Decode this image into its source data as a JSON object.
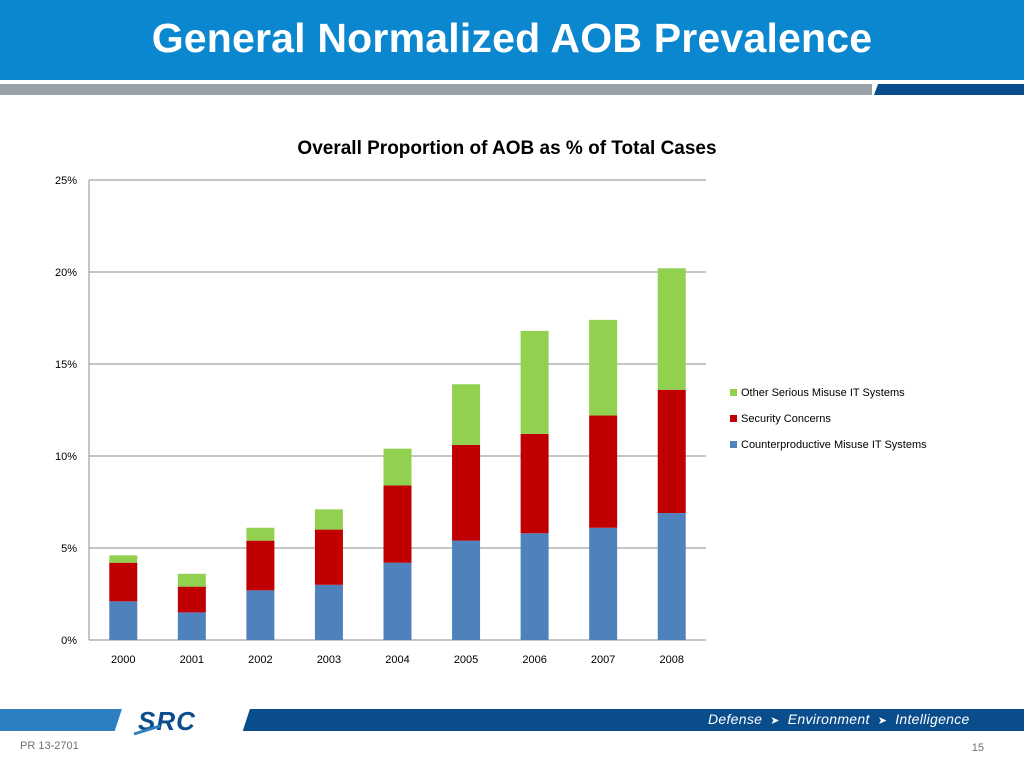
{
  "slide": {
    "title": "General Normalized AOB Prevalence",
    "footer_code": "PR 13-2701",
    "page_number": "15",
    "logo_text": "SRC",
    "tagline": [
      "Defense",
      "Environment",
      "Intelligence"
    ]
  },
  "colors": {
    "header_blue": "#0a87cf",
    "dark_blue": "#0a4d8c",
    "gray_bar": "#9aa1a8",
    "series_blue": "#4f81bd",
    "series_red": "#c00000",
    "series_green": "#92d050"
  },
  "chart_data": {
    "type": "bar",
    "stacked": true,
    "title": "Overall Proportion of AOB as % of Total Cases",
    "xlabel": "",
    "ylabel": "",
    "categories": [
      "2000",
      "2001",
      "2002",
      "2003",
      "2004",
      "2005",
      "2006",
      "2007",
      "2008"
    ],
    "ylim": [
      0,
      25
    ],
    "y_ticks": [
      "0%",
      "5%",
      "10%",
      "15%",
      "20%",
      "25%"
    ],
    "y_tick_values": [
      0,
      5,
      10,
      15,
      20,
      25
    ],
    "grid": true,
    "legend_position": "right",
    "series": [
      {
        "name": "Counterproductive Misuse IT Systems",
        "color": "#4f81bd",
        "values": [
          2.1,
          1.5,
          2.7,
          3.0,
          4.2,
          5.4,
          5.8,
          6.1,
          6.9
        ]
      },
      {
        "name": "Security Concerns",
        "color": "#c00000",
        "values": [
          2.1,
          1.4,
          2.7,
          3.0,
          4.2,
          5.2,
          5.4,
          6.1,
          6.7
        ]
      },
      {
        "name": "Other Serious Misuse IT Systems",
        "color": "#92d050",
        "values": [
          0.4,
          0.7,
          0.7,
          1.1,
          2.0,
          3.3,
          5.6,
          5.2,
          6.6
        ]
      }
    ],
    "legend_order": [
      2,
      1,
      0
    ]
  }
}
